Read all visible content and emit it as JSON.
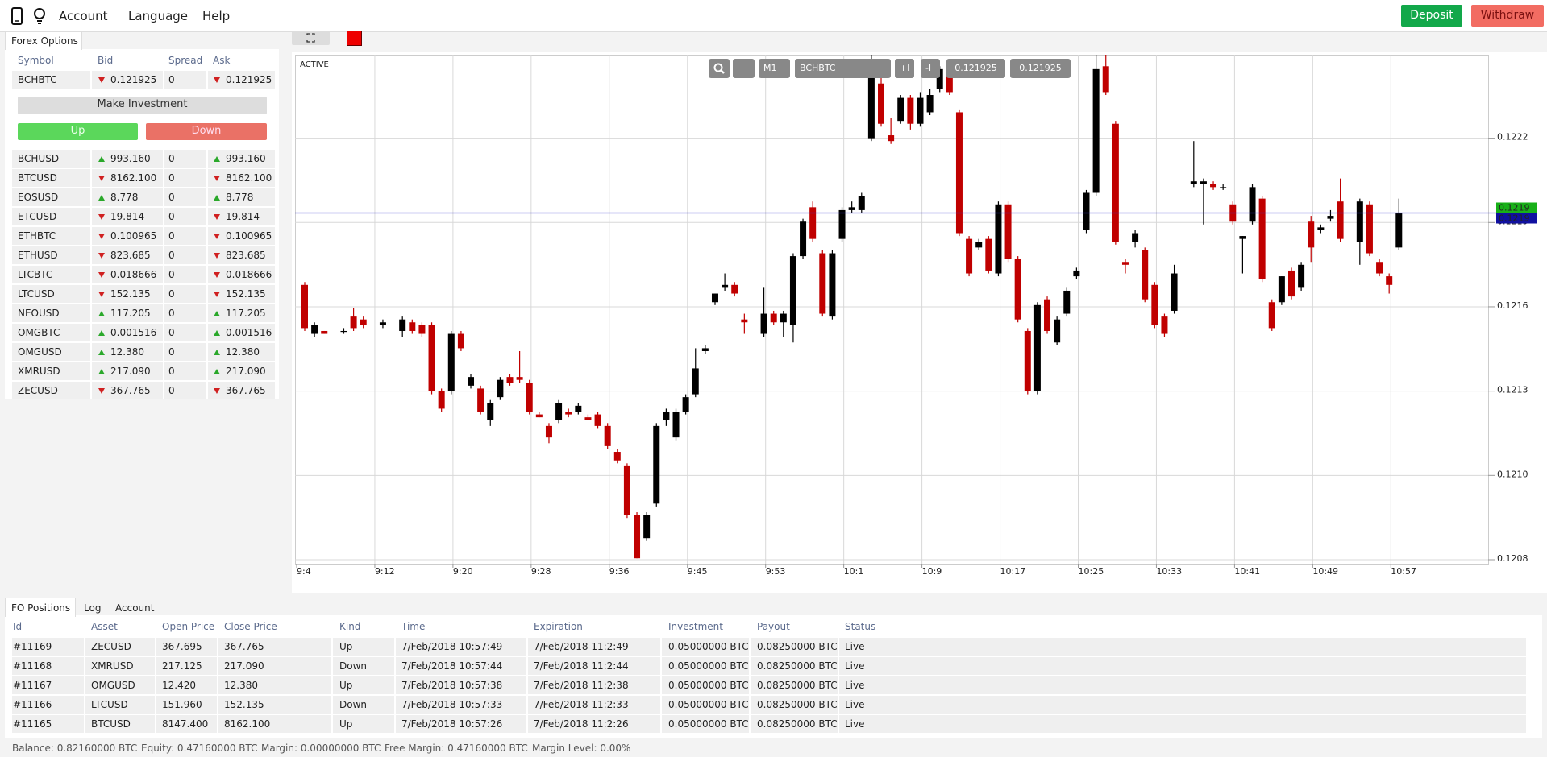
{
  "nav": {
    "items": [
      "Account",
      "Language",
      "Help"
    ],
    "deposit": "Deposit",
    "withdraw": "Withdraw"
  },
  "forex": {
    "tab": "Forex Options",
    "columns": [
      "Symbol",
      "Bid",
      "Spread",
      "Ask"
    ],
    "selected": {
      "symbol": "BCHBTC",
      "dir": "down",
      "bid": "0.121925",
      "spread": "0",
      "ask": "0.121925"
    },
    "invest": "Make Investment",
    "up": "Up",
    "down": "Down",
    "rows": [
      {
        "symbol": "BCHUSD",
        "dir": "up",
        "bid": "993.160",
        "spread": "0",
        "ask": "993.160"
      },
      {
        "symbol": "BTCUSD",
        "dir": "down",
        "bid": "8162.100",
        "spread": "0",
        "ask": "8162.100"
      },
      {
        "symbol": "EOSUSD",
        "dir": "up",
        "bid": "8.778",
        "spread": "0",
        "ask": "8.778"
      },
      {
        "symbol": "ETCUSD",
        "dir": "down",
        "bid": "19.814",
        "spread": "0",
        "ask": "19.814"
      },
      {
        "symbol": "ETHBTC",
        "dir": "down",
        "bid": "0.100965",
        "spread": "0",
        "ask": "0.100965"
      },
      {
        "symbol": "ETHUSD",
        "dir": "down",
        "bid": "823.685",
        "spread": "0",
        "ask": "823.685"
      },
      {
        "symbol": "LTCBTC",
        "dir": "down",
        "bid": "0.018666",
        "spread": "0",
        "ask": "0.018666"
      },
      {
        "symbol": "LTCUSD",
        "dir": "down",
        "bid": "152.135",
        "spread": "0",
        "ask": "152.135"
      },
      {
        "symbol": "NEOUSD",
        "dir": "up",
        "bid": "117.205",
        "spread": "0",
        "ask": "117.205"
      },
      {
        "symbol": "OMGBTC",
        "dir": "up",
        "bid": "0.001516",
        "spread": "0",
        "ask": "0.001516"
      },
      {
        "symbol": "OMGUSD",
        "dir": "up",
        "bid": "12.380",
        "spread": "0",
        "ask": "12.380"
      },
      {
        "symbol": "XMRUSD",
        "dir": "up",
        "bid": "217.090",
        "spread": "0",
        "ask": "217.090"
      },
      {
        "symbol": "ZECUSD",
        "dir": "down",
        "bid": "367.765",
        "spread": "0",
        "ask": "367.765"
      }
    ]
  },
  "toolbar": {
    "timeframe": "M1",
    "symbol": "BCHBTC",
    "zoom_in": "+l",
    "zoom_out": "-l",
    "bid": "0.121925",
    "ask": "0.121925"
  },
  "chart_data": {
    "type": "candlestick",
    "status": "ACTIVE",
    "up_color": "#000000",
    "down_color": "#c00000",
    "grid": true,
    "ylim": [
      0.120755,
      0.12251
    ],
    "yticks": [
      {
        "value": 0.12222,
        "label": "0.1222"
      },
      {
        "value": 0.121927,
        "label": "0.1219"
      },
      {
        "value": 0.121634,
        "label": "0.1216"
      },
      {
        "value": 0.121341,
        "label": "0.1213"
      },
      {
        "value": 0.121048,
        "label": "0.1210"
      },
      {
        "value": 0.120755,
        "label": "0.1208"
      }
    ],
    "xticks": [
      "9:4",
      "9:12",
      "9:20",
      "9:28",
      "9:36",
      "9:45",
      "9:53",
      "10:1",
      "10:9",
      "10:17",
      "10:25",
      "10:33",
      "10:41",
      "10:49",
      "10:57"
    ],
    "price_tags": [
      "0.1219",
      "0.1219"
    ],
    "price_tag_colors": [
      "#18b018",
      "#1010a0"
    ],
    "price_line_color": "#3a3ad0",
    "candles": [
      [
        0.12171,
        0.12172,
        0.12155,
        0.12156
      ],
      [
        0.12154,
        0.12158,
        0.12153,
        0.12157
      ],
      [
        0.12155,
        0.12155,
        0.12154,
        0.12154
      ],
      null,
      [
        0.12155,
        0.12156,
        0.12154,
        0.12155
      ],
      [
        0.1216,
        0.12163,
        0.12155,
        0.12156
      ],
      [
        0.12159,
        0.1216,
        0.12156,
        0.12157
      ],
      null,
      [
        0.12157,
        0.12159,
        0.12156,
        0.12158
      ],
      null,
      [
        0.12155,
        0.1216,
        0.12153,
        0.12159
      ],
      [
        0.12158,
        0.12159,
        0.12154,
        0.12155
      ],
      [
        0.12157,
        0.12158,
        0.12153,
        0.12154
      ],
      [
        0.12157,
        0.12158,
        0.12133,
        0.12134
      ],
      [
        0.12134,
        0.12135,
        0.12127,
        0.12128
      ],
      [
        0.12134,
        0.12155,
        0.12133,
        0.12154
      ],
      [
        0.12154,
        0.12155,
        0.12148,
        0.12149
      ],
      [
        0.12136,
        0.1214,
        0.12135,
        0.12139
      ],
      [
        0.12135,
        0.12136,
        0.12126,
        0.12127
      ],
      [
        0.12124,
        0.12131,
        0.12122,
        0.1213
      ],
      [
        0.12132,
        0.12139,
        0.12131,
        0.12138
      ],
      [
        0.12139,
        0.1214,
        0.12136,
        0.12137
      ],
      [
        0.12139,
        0.12148,
        0.12137,
        0.12138
      ],
      [
        0.12137,
        0.12138,
        0.12126,
        0.12127
      ],
      [
        0.12126,
        0.12127,
        0.12125,
        0.12125
      ],
      [
        0.12122,
        0.12123,
        0.12116,
        0.12118
      ],
      [
        0.12124,
        0.12131,
        0.12123,
        0.1213
      ],
      [
        0.12127,
        0.12128,
        0.12125,
        0.12126
      ],
      [
        0.12127,
        0.1213,
        0.12126,
        0.12129
      ],
      [
        0.12125,
        0.12126,
        0.12124,
        0.12124
      ],
      [
        0.12126,
        0.12127,
        0.12121,
        0.12122
      ],
      [
        0.12122,
        0.12123,
        0.12114,
        0.12115
      ],
      [
        0.12113,
        0.12114,
        0.12109,
        0.1211
      ],
      [
        0.12108,
        0.12109,
        0.1209,
        0.12091
      ],
      [
        0.12091,
        0.12092,
        0.12076,
        0.12076
      ],
      [
        0.12083,
        0.12092,
        0.12082,
        0.12091
      ],
      [
        0.12095,
        0.12123,
        0.12094,
        0.12122
      ],
      [
        0.12124,
        0.12128,
        0.12122,
        0.12127
      ],
      [
        0.12118,
        0.12128,
        0.12117,
        0.12127
      ],
      [
        0.12127,
        0.12133,
        0.12126,
        0.12132
      ],
      [
        0.12133,
        0.12149,
        0.12132,
        0.12142
      ],
      [
        0.12148,
        0.1215,
        0.12147,
        0.12149
      ],
      [
        0.12165,
        0.12168,
        0.12164,
        0.12168
      ],
      [
        0.1217,
        0.12175,
        0.12169,
        0.12171
      ],
      [
        0.12171,
        0.12172,
        0.12167,
        0.12168
      ],
      [
        0.12159,
        0.12161,
        0.12154,
        0.12158
      ],
      null,
      [
        0.12154,
        0.1217,
        0.12153,
        0.12161
      ],
      [
        0.12161,
        0.12162,
        0.12157,
        0.12158
      ],
      [
        0.12158,
        0.12162,
        0.12153,
        0.12161
      ],
      [
        0.12157,
        0.12182,
        0.12151,
        0.12181
      ],
      [
        0.12181,
        0.12194,
        0.1218,
        0.12193
      ],
      [
        0.12198,
        0.122,
        0.12186,
        0.12187
      ],
      [
        0.12182,
        0.12183,
        0.1216,
        0.12161
      ],
      [
        0.1216,
        0.12183,
        0.12159,
        0.12182
      ],
      [
        0.12187,
        0.12198,
        0.12186,
        0.12197
      ],
      [
        0.12197,
        0.122,
        0.12196,
        0.12198
      ],
      [
        0.12197,
        0.12203,
        0.12196,
        0.12202
      ],
      [
        0.12222,
        0.12251,
        0.12221,
        0.12249
      ],
      [
        0.12241,
        0.12243,
        0.12226,
        0.12227
      ],
      [
        0.12223,
        0.12229,
        0.1222,
        0.12221
      ],
      [
        0.12228,
        0.12237,
        0.12227,
        0.12236
      ],
      [
        0.12236,
        0.12237,
        0.12225,
        0.12227
      ],
      [
        0.12227,
        0.12238,
        0.12226,
        0.12236
      ],
      [
        0.12231,
        0.12239,
        0.1223,
        0.12237
      ],
      [
        0.12239,
        0.12247,
        0.12238,
        0.12246
      ],
      [
        0.12246,
        0.12247,
        0.12237,
        0.12238
      ],
      [
        0.12231,
        0.12232,
        0.12188,
        0.12189
      ],
      [
        0.12187,
        0.12188,
        0.12174,
        0.12175
      ],
      [
        0.12184,
        0.12187,
        0.12183,
        0.12186
      ],
      [
        0.12187,
        0.12188,
        0.12175,
        0.12176
      ],
      [
        0.12175,
        0.122,
        0.12174,
        0.12199
      ],
      [
        0.12199,
        0.122,
        0.12179,
        0.1218
      ],
      [
        0.1218,
        0.12181,
        0.12158,
        0.12159
      ],
      [
        0.12155,
        0.12156,
        0.12133,
        0.12134
      ],
      [
        0.12134,
        0.12165,
        0.12133,
        0.12164
      ],
      [
        0.12166,
        0.12167,
        0.12154,
        0.12155
      ],
      [
        0.12151,
        0.1216,
        0.1215,
        0.12159
      ],
      [
        0.12161,
        0.1217,
        0.1216,
        0.12169
      ],
      [
        0.12174,
        0.12177,
        0.12173,
        0.12176
      ],
      [
        0.1219,
        0.12204,
        0.12189,
        0.12203
      ],
      [
        0.12203,
        0.12251,
        0.12202,
        0.12246
      ],
      [
        0.12247,
        0.12251,
        0.12237,
        0.12238
      ],
      [
        0.12227,
        0.12228,
        0.12185,
        0.12186
      ],
      [
        0.12179,
        0.1218,
        0.12175,
        0.12178
      ],
      [
        0.12186,
        0.1219,
        0.12184,
        0.12189
      ],
      [
        0.12183,
        0.12184,
        0.12165,
        0.12166
      ],
      [
        0.12171,
        0.12172,
        0.12156,
        0.12157
      ],
      [
        0.1216,
        0.12161,
        0.12153,
        0.12154
      ],
      [
        0.12162,
        0.12178,
        0.12161,
        0.12175
      ],
      null,
      [
        0.12206,
        0.12221,
        0.12205,
        0.12207
      ],
      [
        0.12206,
        0.12208,
        0.12192,
        0.12207
      ],
      [
        0.12206,
        0.12207,
        0.12204,
        0.12205
      ],
      [
        0.12205,
        0.12206,
        0.12204,
        0.12205
      ],
      [
        0.12199,
        0.122,
        0.12192,
        0.12193
      ],
      [
        0.12187,
        0.12188,
        0.12175,
        0.12188
      ],
      [
        0.12193,
        0.12206,
        0.12192,
        0.12205
      ],
      [
        0.12201,
        0.12202,
        0.12172,
        0.12173
      ],
      [
        0.12165,
        0.12166,
        0.12155,
        0.12156
      ],
      [
        0.12165,
        0.12174,
        0.12164,
        0.12174
      ],
      [
        0.12176,
        0.12177,
        0.12166,
        0.12167
      ],
      [
        0.1217,
        0.12179,
        0.12169,
        0.12178
      ],
      [
        0.12193,
        0.12195,
        0.12179,
        0.12184
      ],
      [
        0.1219,
        0.12192,
        0.12189,
        0.12191
      ],
      [
        0.12194,
        0.12197,
        0.12193,
        0.12195
      ],
      [
        0.122,
        0.12208,
        0.12186,
        0.12187
      ],
      null,
      [
        0.12186,
        0.12201,
        0.12178,
        0.122
      ],
      [
        0.12199,
        0.122,
        0.12181,
        0.12182
      ],
      [
        0.12179,
        0.1218,
        0.12174,
        0.12175
      ],
      [
        0.12174,
        0.12175,
        0.12168,
        0.12171
      ],
      [
        0.12184,
        0.12201,
        0.12183,
        0.12196
      ]
    ]
  },
  "positions": {
    "tabs": [
      "FO Positions",
      "Log",
      "Account"
    ],
    "columns": [
      "Id",
      "Asset",
      "Open Price",
      "Close Price",
      "Kind",
      "Time",
      "Expiration",
      "Investment",
      "Payout",
      "Status"
    ],
    "rows": [
      [
        "#11169",
        "ZECUSD",
        "367.695",
        "367.765",
        "Up",
        "7/Feb/2018 10:57:49",
        "7/Feb/2018 11:2:49",
        "0.05000000 BTC",
        "0.08250000 BTC",
        "Live"
      ],
      [
        "#11168",
        "XMRUSD",
        "217.125",
        "217.090",
        "Down",
        "7/Feb/2018 10:57:44",
        "7/Feb/2018 11:2:44",
        "0.05000000 BTC",
        "0.08250000 BTC",
        "Live"
      ],
      [
        "#11167",
        "OMGUSD",
        "12.420",
        "12.380",
        "Up",
        "7/Feb/2018 10:57:38",
        "7/Feb/2018 11:2:38",
        "0.05000000 BTC",
        "0.08250000 BTC",
        "Live"
      ],
      [
        "#11166",
        "LTCUSD",
        "151.960",
        "152.135",
        "Down",
        "7/Feb/2018 10:57:33",
        "7/Feb/2018 11:2:33",
        "0.05000000 BTC",
        "0.08250000 BTC",
        "Live"
      ],
      [
        "#11165",
        "BTCUSD",
        "8147.400",
        "8162.100",
        "Up",
        "7/Feb/2018 10:57:26",
        "7/Feb/2018 11:2:26",
        "0.05000000 BTC",
        "0.08250000 BTC",
        "Live"
      ]
    ]
  },
  "footer": [
    "Balance: 0.82160000 BTC",
    "Equity: 0.47160000 BTC",
    "Margin: 0.00000000 BTC",
    "Free Margin: 0.47160000 BTC",
    "Margin Level: 0.00%"
  ]
}
